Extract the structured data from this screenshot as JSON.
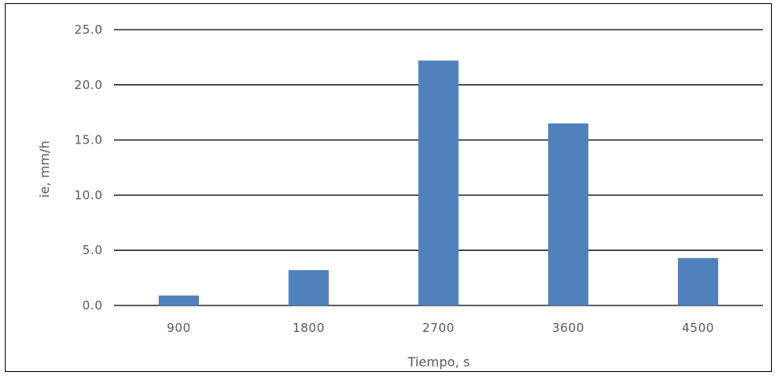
{
  "chart_data": {
    "type": "bar",
    "title": "",
    "xlabel": "Tiempo, s",
    "ylabel": "ie, mm/h",
    "categories": [
      "900",
      "1800",
      "2700",
      "3600",
      "4500"
    ],
    "series": [
      {
        "values": [
          0.9,
          3.2,
          22.2,
          16.5,
          4.3
        ]
      }
    ],
    "ylim": [
      0,
      25
    ],
    "yticks": [
      0,
      5,
      10,
      15,
      20,
      25
    ],
    "ytick_labels": [
      "0.0",
      "5.0",
      "10.0",
      "15.0",
      "20.0",
      "25.0"
    ],
    "grid": true,
    "legend": "none",
    "bar_color": "#4f81bd",
    "gridline_color": "#000000",
    "text_color": "#595959"
  }
}
